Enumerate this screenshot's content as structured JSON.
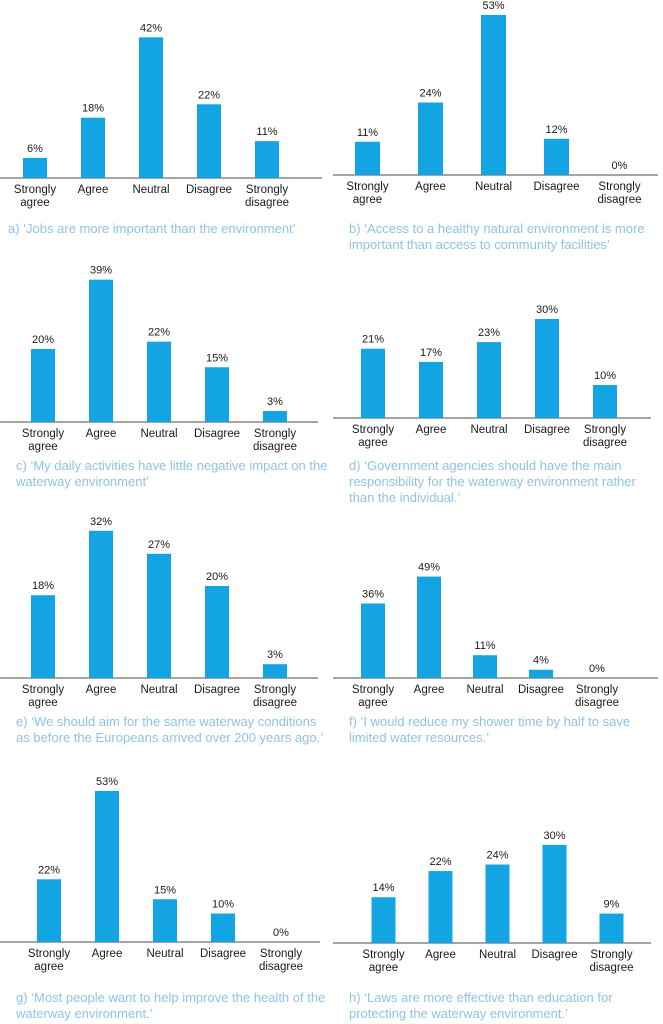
{
  "colors": {
    "bar": "#13a4e3",
    "axis": "#4a4a4a",
    "caption": "#8ec3e8",
    "text": "#1a1a1a"
  },
  "chart_data": [
    {
      "type": "bar",
      "categories": [
        "Strongly agree",
        "Agree",
        "Neutral",
        "Disagree",
        "Strongly disagree"
      ],
      "values": [
        6,
        18,
        42,
        22,
        11
      ],
      "value_labels": [
        "6%",
        "18%",
        "42%",
        "22%",
        "11%"
      ],
      "caption": "a) ‘Jobs are more important than the environment’"
    },
    {
      "type": "bar",
      "categories": [
        "Strongly agree",
        "Agree",
        "Neutral",
        "Disagree",
        "Strongly disagree"
      ],
      "values": [
        11,
        24,
        53,
        12,
        0
      ],
      "value_labels": [
        "11%",
        "24%",
        "53%",
        "12%",
        "0%"
      ],
      "caption": "b) ‘Access to a healthy natural environment is more important than access to community  facilities’"
    },
    {
      "type": "bar",
      "categories": [
        "Strongly agree",
        "Agree",
        "Neutral",
        "Disagree",
        "Strongly disagree"
      ],
      "values": [
        20,
        39,
        22,
        15,
        3
      ],
      "value_labels": [
        "20%",
        "39%",
        "22%",
        "15%",
        "3%"
      ],
      "caption": "c) ‘My daily activities have little negative impact on the waterway environment’"
    },
    {
      "type": "bar",
      "categories": [
        "Strongly agree",
        "Agree",
        "Neutral",
        "Disagree",
        "Strongly disagree"
      ],
      "values": [
        21,
        17,
        23,
        30,
        10
      ],
      "value_labels": [
        "21%",
        "17%",
        "23%",
        "30%",
        "10%"
      ],
      "caption": "d) ‘Government agencies should have the main responsibility for the waterway environment rather than the individual.’"
    },
    {
      "type": "bar",
      "categories": [
        "Strongly agree",
        "Agree",
        "Neutral",
        "Disagree",
        "Strongly disagree"
      ],
      "values": [
        18,
        32,
        27,
        20,
        3
      ],
      "value_labels": [
        "18%",
        "32%",
        "27%",
        "20%",
        "3%"
      ],
      "caption": "e) ‘We should aim for the same waterway conditions as before the Europeans arrived over 200 years ago.’"
    },
    {
      "type": "bar",
      "categories": [
        "Strongly agree",
        "Agree",
        "Neutral",
        "Disagree",
        "Strongly disagree"
      ],
      "values": [
        36,
        49,
        11,
        4,
        0
      ],
      "value_labels": [
        "36%",
        "49%",
        "11%",
        "4%",
        "0%"
      ],
      "caption": "f) ‘I would reduce my shower time by half to save limited water resources.’"
    },
    {
      "type": "bar",
      "categories": [
        "Strongly agree",
        "Agree",
        "Neutral",
        "Disagree",
        "Strongly disagree"
      ],
      "values": [
        22,
        53,
        15,
        10,
        0
      ],
      "value_labels": [
        "22%",
        "53%",
        "15%",
        "10%",
        "0%"
      ],
      "caption": "g) ‘Most people want to help improve the health of the waterway environment.’"
    },
    {
      "type": "bar",
      "categories": [
        "Strongly agree",
        "Agree",
        "Neutral",
        "Disagree",
        "Strongly disagree"
      ],
      "values": [
        14,
        22,
        24,
        30,
        9
      ],
      "value_labels": [
        "14%",
        "22%",
        "24%",
        "30%",
        "9%"
      ],
      "caption": "h) ‘Laws are more effective than education for protecting the waterway environment.’"
    }
  ]
}
